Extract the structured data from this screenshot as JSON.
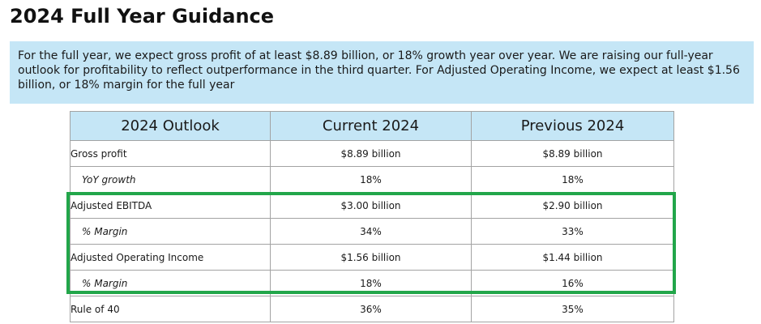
{
  "title": "2024 Full Year Guidance",
  "summary": "For the full year, we expect gross profit of at least $8.89 billion, or 18% growth year over year. We are raising our full-year outlook for profitability to reflect outperformance in the third quarter. For Adjusted Operating Income, we expect at least $1.56 billion, or 18% margin for the full year",
  "table": {
    "headers": [
      "2024 Outlook",
      "Current 2024",
      "Previous 2024"
    ],
    "rows": [
      {
        "label": "Gross profit",
        "current": "$8.89 billion",
        "previous": "$8.89 billion"
      },
      {
        "label": "YoY growth",
        "current": "18%",
        "previous": "18%"
      },
      {
        "label": "Adjusted EBITDA",
        "current": "$3.00 billion",
        "previous": "$2.90 billion"
      },
      {
        "label": "% Margin",
        "current": "34%",
        "previous": "33%"
      },
      {
        "label": "Adjusted Operating Income",
        "current": "$1.56 billion",
        "previous": "$1.44 billion"
      },
      {
        "label": "% Margin",
        "current": "18%",
        "previous": "16%"
      },
      {
        "label": "Rule of 40",
        "current": "36%",
        "previous": "35%"
      }
    ]
  },
  "highlight_color": "#22a64a",
  "header_bg_color": "#c5e6f6"
}
